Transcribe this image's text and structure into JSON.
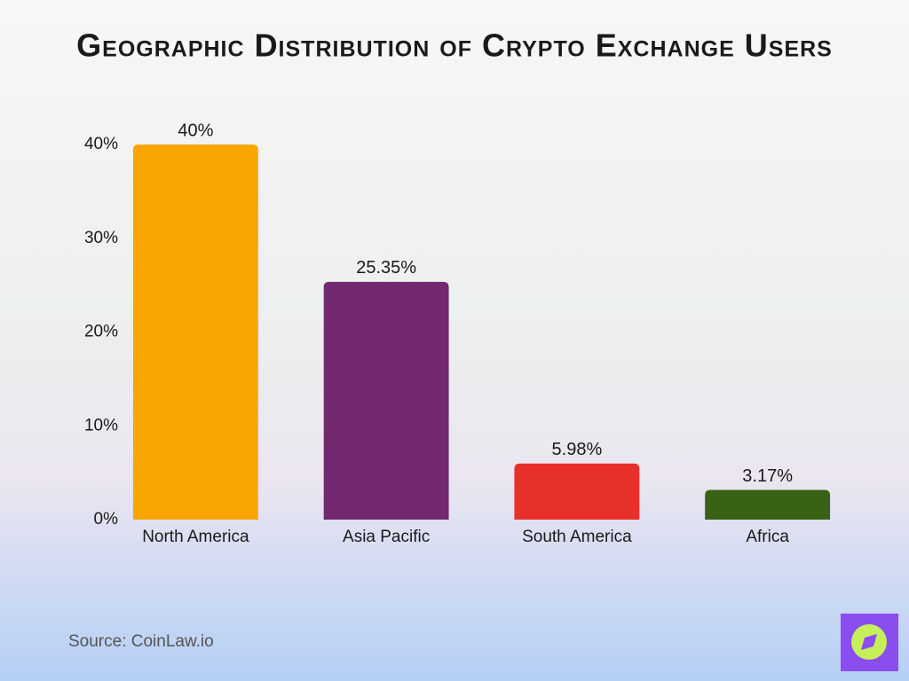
{
  "chart_data": {
    "type": "bar",
    "title": "Geographic Distribution of Crypto Exchange Users",
    "categories": [
      "North America",
      "Asia Pacific",
      "South America",
      "Africa"
    ],
    "values": [
      40,
      25.35,
      5.98,
      3.17
    ],
    "value_labels": [
      "40%",
      "25.35%",
      "5.98%",
      "3.17%"
    ],
    "colors": [
      "#f9a602",
      "#73296f",
      "#e8302a",
      "#3a6214"
    ],
    "ylim": [
      0,
      40
    ],
    "yticks": [
      {
        "value": 0,
        "label": "0%"
      },
      {
        "value": 10,
        "label": "10%"
      },
      {
        "value": 20,
        "label": "20%"
      },
      {
        "value": 30,
        "label": "30%"
      },
      {
        "value": 40,
        "label": "40%"
      }
    ],
    "grid": false,
    "source": "Source: CoinLaw.io"
  }
}
